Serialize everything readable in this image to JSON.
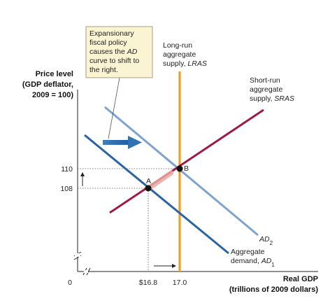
{
  "chart_data": {
    "type": "line",
    "y_axis_title": [
      "Price level",
      "(GDP deflator,",
      "2009 = 100)"
    ],
    "x_axis_title": [
      "Real GDP",
      "(trillions of 2009 dollars)"
    ],
    "origin_label": "0",
    "x_ticks": [
      "$16.8",
      "17.0"
    ],
    "y_ticks": [
      "110",
      "108"
    ],
    "points": [
      {
        "name": "A",
        "x": 16.8,
        "y": 108
      },
      {
        "name": "B",
        "x": 17.0,
        "y": 110
      }
    ],
    "curves": [
      {
        "key": "lras",
        "type": "vertical",
        "x": 17.0,
        "color": "#f39c1f",
        "label": [
          "Long-run",
          "aggregate",
          "supply, "
        ],
        "label_italic": "LRAS"
      },
      {
        "key": "sras",
        "color": "#9b1b4a",
        "label": [
          "Short-run",
          "aggregate",
          "supply, "
        ],
        "label_italic": "SRAS"
      },
      {
        "key": "ad2",
        "color": "#7ea3cf",
        "label_italic": "AD",
        "label_sub": "2"
      },
      {
        "key": "ad1",
        "color": "#2a64a0",
        "label": [
          "Aggregate",
          "demand, "
        ],
        "label_italic": "AD",
        "label_sub": "1"
      }
    ],
    "callout": {
      "lines": [
        "Expansionary",
        "fiscal policy",
        "causes the ",
        "curve to shift to",
        "the right."
      ],
      "italic": "AD"
    }
  },
  "colors": {
    "ad1": "#2a64a0",
    "ad2": "#7ea3cf",
    "sras": "#9b1b4a",
    "lras": "#f39c1f",
    "callout_bg": "#fbf4d2",
    "callout_border": "#8a8a6a",
    "shift_arrow": "#2f73b5",
    "move_arrow": "#e9a8a0"
  }
}
